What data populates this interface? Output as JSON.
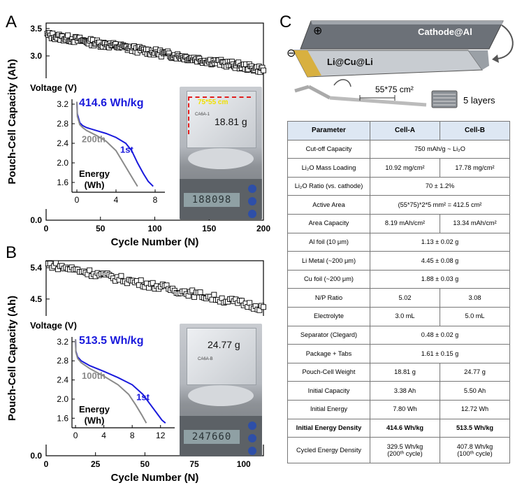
{
  "panels": {
    "a": "A",
    "b": "B",
    "c": "C"
  },
  "chart_data": [
    {
      "id": "A",
      "type": "scatter",
      "xlabel": "Cycle Number (N)",
      "ylabel": "Pouch-Cell Capacity (Ah)",
      "xlim": [
        0,
        200
      ],
      "ylim": [
        0,
        3.6
      ],
      "xticks": [
        "0",
        "50",
        "100",
        "150",
        "200"
      ],
      "yticks": [
        "0.0",
        "0.5",
        "1.0",
        "1.5",
        "2.0",
        "2.5",
        "3.0",
        "3.5"
      ],
      "marker": "open-square",
      "n_cycles": 200,
      "capacity_start": 3.38,
      "capacity_end": 2.75,
      "inset": {
        "type": "line",
        "ylabel": "Voltage (V)",
        "xlabel": "Energy\n(Wh)",
        "xticks": [
          "0",
          "4",
          "8"
        ],
        "yticks": [
          "1.6",
          "2.0",
          "2.4",
          "2.8",
          "3.2"
        ],
        "xlim": [
          -0.5,
          9
        ],
        "ylim": [
          1.4,
          3.3
        ],
        "energy_label": "414.6 Wh/kg",
        "series": [
          {
            "name": "1st",
            "color": "#1a1adc",
            "x": [
              0,
              0.05,
              0.3,
              0.6,
              1,
              2,
              3,
              4,
              5,
              5.6,
              6.2,
              6.8,
              7.3,
              7.8
            ],
            "y": [
              3.25,
              3.0,
              2.82,
              2.76,
              2.72,
              2.66,
              2.6,
              2.52,
              2.4,
              2.25,
              2.0,
              1.78,
              1.62,
              1.52
            ]
          },
          {
            "name": "200th",
            "color": "#8a8a8a",
            "x": [
              0,
              0.05,
              0.3,
              0.6,
              1,
              2,
              3,
              4,
              4.6,
              5.2,
              5.8,
              6.2
            ],
            "y": [
              3.25,
              2.95,
              2.78,
              2.72,
              2.66,
              2.56,
              2.44,
              2.25,
              2.05,
              1.85,
              1.65,
              1.52
            ]
          }
        ],
        "photo_label": "18.81 g",
        "photo_dim": "75*55 cm",
        "scale_display": "188098"
      }
    },
    {
      "id": "B",
      "type": "scatter",
      "xlabel": "Cycle Number (N)",
      "ylabel": "Pouch-Cell Capacity (Ah)",
      "xlim": [
        0,
        110
      ],
      "ylim": [
        0,
        5.6
      ],
      "xticks": [
        "0",
        "25",
        "50",
        "75",
        "100"
      ],
      "yticks": [
        "0.0",
        "0.9",
        "1.8",
        "2.7",
        "3.6",
        "4.5",
        "5.4"
      ],
      "marker": "open-square",
      "n_cycles": 110,
      "capacity_start": 5.5,
      "capacity_end": 4.25,
      "inset": {
        "type": "line",
        "ylabel": "Voltage (V)",
        "xlabel": "Energy\n(Wh)",
        "xticks": [
          "0",
          "4",
          "8",
          "12"
        ],
        "yticks": [
          "1.6",
          "2.0",
          "2.4",
          "2.8",
          "3.2"
        ],
        "xlim": [
          -0.5,
          14
        ],
        "ylim": [
          1.4,
          3.3
        ],
        "energy_label": "513.5 Wh/kg",
        "series": [
          {
            "name": "1st",
            "color": "#1a1adc",
            "x": [
              0,
              0.05,
              0.3,
              0.8,
              2,
              4,
              6,
              8,
              9.5,
              10.5,
              11.5,
              12.2,
              12.7
            ],
            "y": [
              3.25,
              3.0,
              2.88,
              2.8,
              2.7,
              2.58,
              2.45,
              2.3,
              2.1,
              1.9,
              1.7,
              1.56,
              1.5
            ]
          },
          {
            "name": "100th",
            "color": "#8a8a8a",
            "x": [
              0,
              0.05,
              0.3,
              0.8,
              2,
              4,
              6,
              7.5,
              8.5,
              9.3,
              10
            ],
            "y": [
              3.25,
              2.98,
              2.85,
              2.76,
              2.64,
              2.48,
              2.3,
              2.1,
              1.88,
              1.68,
              1.5
            ]
          }
        ],
        "photo_label": "24.77 g",
        "scale_display": "247660"
      }
    }
  ],
  "schematic": {
    "cathode_label": "Cathode@Al",
    "anode_label": "Li@Cu@Li",
    "plus": "⊕",
    "minus": "⊖",
    "area_label": "55*75 cm²",
    "layers_label": "5 layers"
  },
  "table": {
    "headers": [
      "Parameter",
      "Cell-A",
      "Cell-B"
    ],
    "rows": [
      {
        "param": "Cut-off Capacity",
        "merged": "750 mAh/g ~ Li₂O"
      },
      {
        "param": "Li₂O Mass Loading",
        "a": "10.92 mg/cm²",
        "b": "17.78 mg/cm²"
      },
      {
        "param": "Li₂O Ratio (vs. cathode)",
        "merged": "70 ± 1.2%"
      },
      {
        "param": "Active Area",
        "merged": "(55*75)*2*5 mm² = 412.5 cm²"
      },
      {
        "param": "Area Capacity",
        "a": "8.19 mAh/cm²",
        "b": "13.34 mAh/cm²"
      },
      {
        "param": "Al foil (10 μm)",
        "merged": "1.13 ± 0.02 g"
      },
      {
        "param": "Li Metal (~200 μm)",
        "merged": "4.45 ± 0.08 g"
      },
      {
        "param": "Cu foil (~200 μm)",
        "merged": "1.88 ± 0.03 g"
      },
      {
        "param": "N/P Ratio",
        "a": "5.02",
        "b": "3.08"
      },
      {
        "param": "Electrolyte",
        "a": "3.0 mL",
        "b": "5.0 mL"
      },
      {
        "param": "Separator (Clegard)",
        "merged": "0.48 ± 0.02 g"
      },
      {
        "param": "Package + Tabs",
        "merged": "1.61 ± 0.15 g"
      },
      {
        "param": "Pouch-Cell Weight",
        "a": "18.81 g",
        "b": "24.77 g"
      },
      {
        "param": "Initial Capacity",
        "a": "3.38 Ah",
        "b": "5.50 Ah"
      },
      {
        "param": "Initial Energy",
        "a": "7.80 Wh",
        "b": "12.72 Wh"
      },
      {
        "param": "Initial Energy Density",
        "a": "414.6 Wh/kg",
        "b": "513.5 Wh/kg",
        "bold": true
      },
      {
        "param": "Cycled Energy Density",
        "a": "329.5 Wh/kg\n(200ᵗʰ cycle)",
        "b": "407.8 Wh/kg\n(100ᵗʰ cycle)",
        "tall": true
      }
    ]
  }
}
